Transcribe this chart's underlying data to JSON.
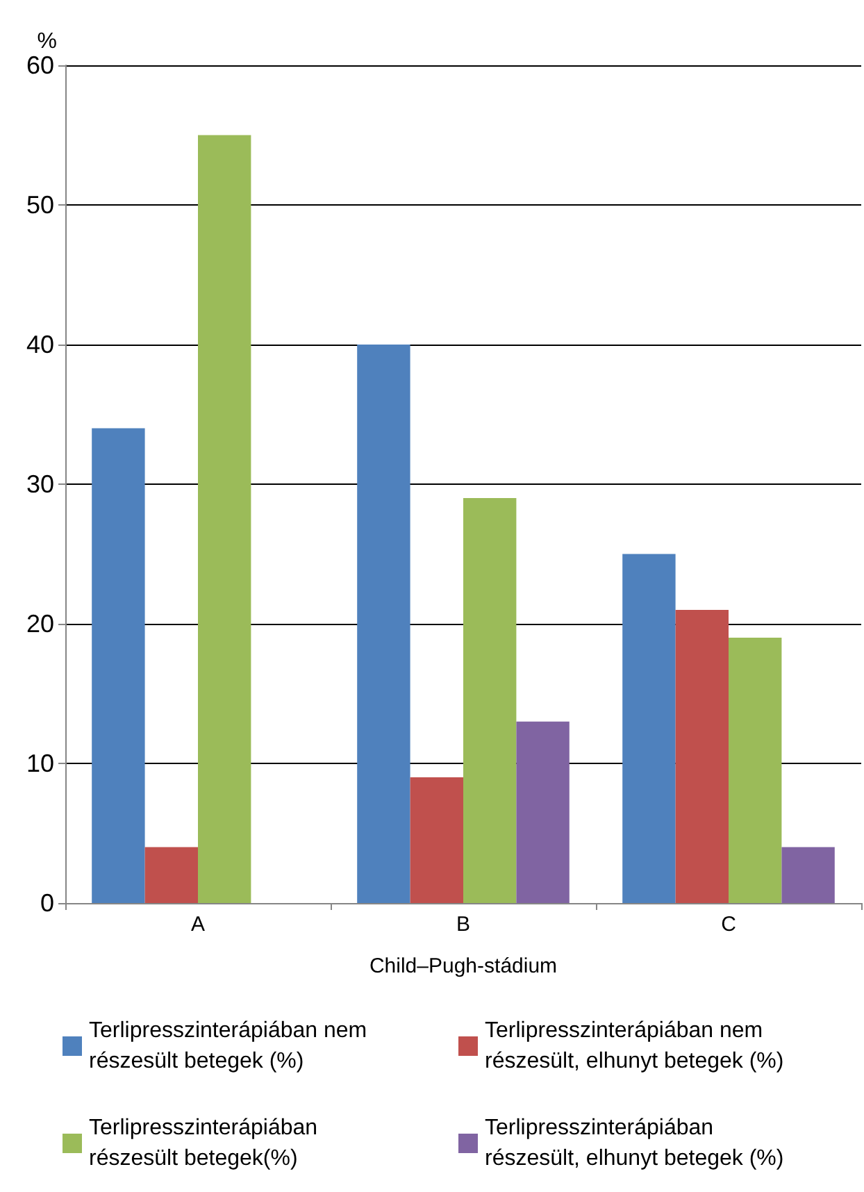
{
  "chart_data": {
    "type": "bar",
    "ylabel": "%",
    "xlabel": "Child–Pugh-stádium",
    "categories": [
      "A",
      "B",
      "C"
    ],
    "series": [
      {
        "name": "Terlipresszinterápiában nem részesült betegek (%)",
        "color": "#4f81bd",
        "values": [
          34,
          40,
          25
        ]
      },
      {
        "name": "Terlipresszinterápiában nem részesült, elhunyt betegek (%)",
        "color": "#c0504d",
        "values": [
          4,
          9,
          21
        ]
      },
      {
        "name": "Terlipresszinterápiában részesült betegek(%)",
        "color": "#9bbb59",
        "values": [
          55,
          29,
          19
        ]
      },
      {
        "name": "Terlipresszinterápiában részesült, elhunyt betegek (%)",
        "color": "#8064a2",
        "values": [
          null,
          13,
          4
        ]
      }
    ],
    "ylim": [
      0,
      60
    ],
    "yticks": [
      0,
      10,
      20,
      30,
      40,
      50,
      60
    ],
    "grid": "y",
    "legend": "bottom"
  }
}
